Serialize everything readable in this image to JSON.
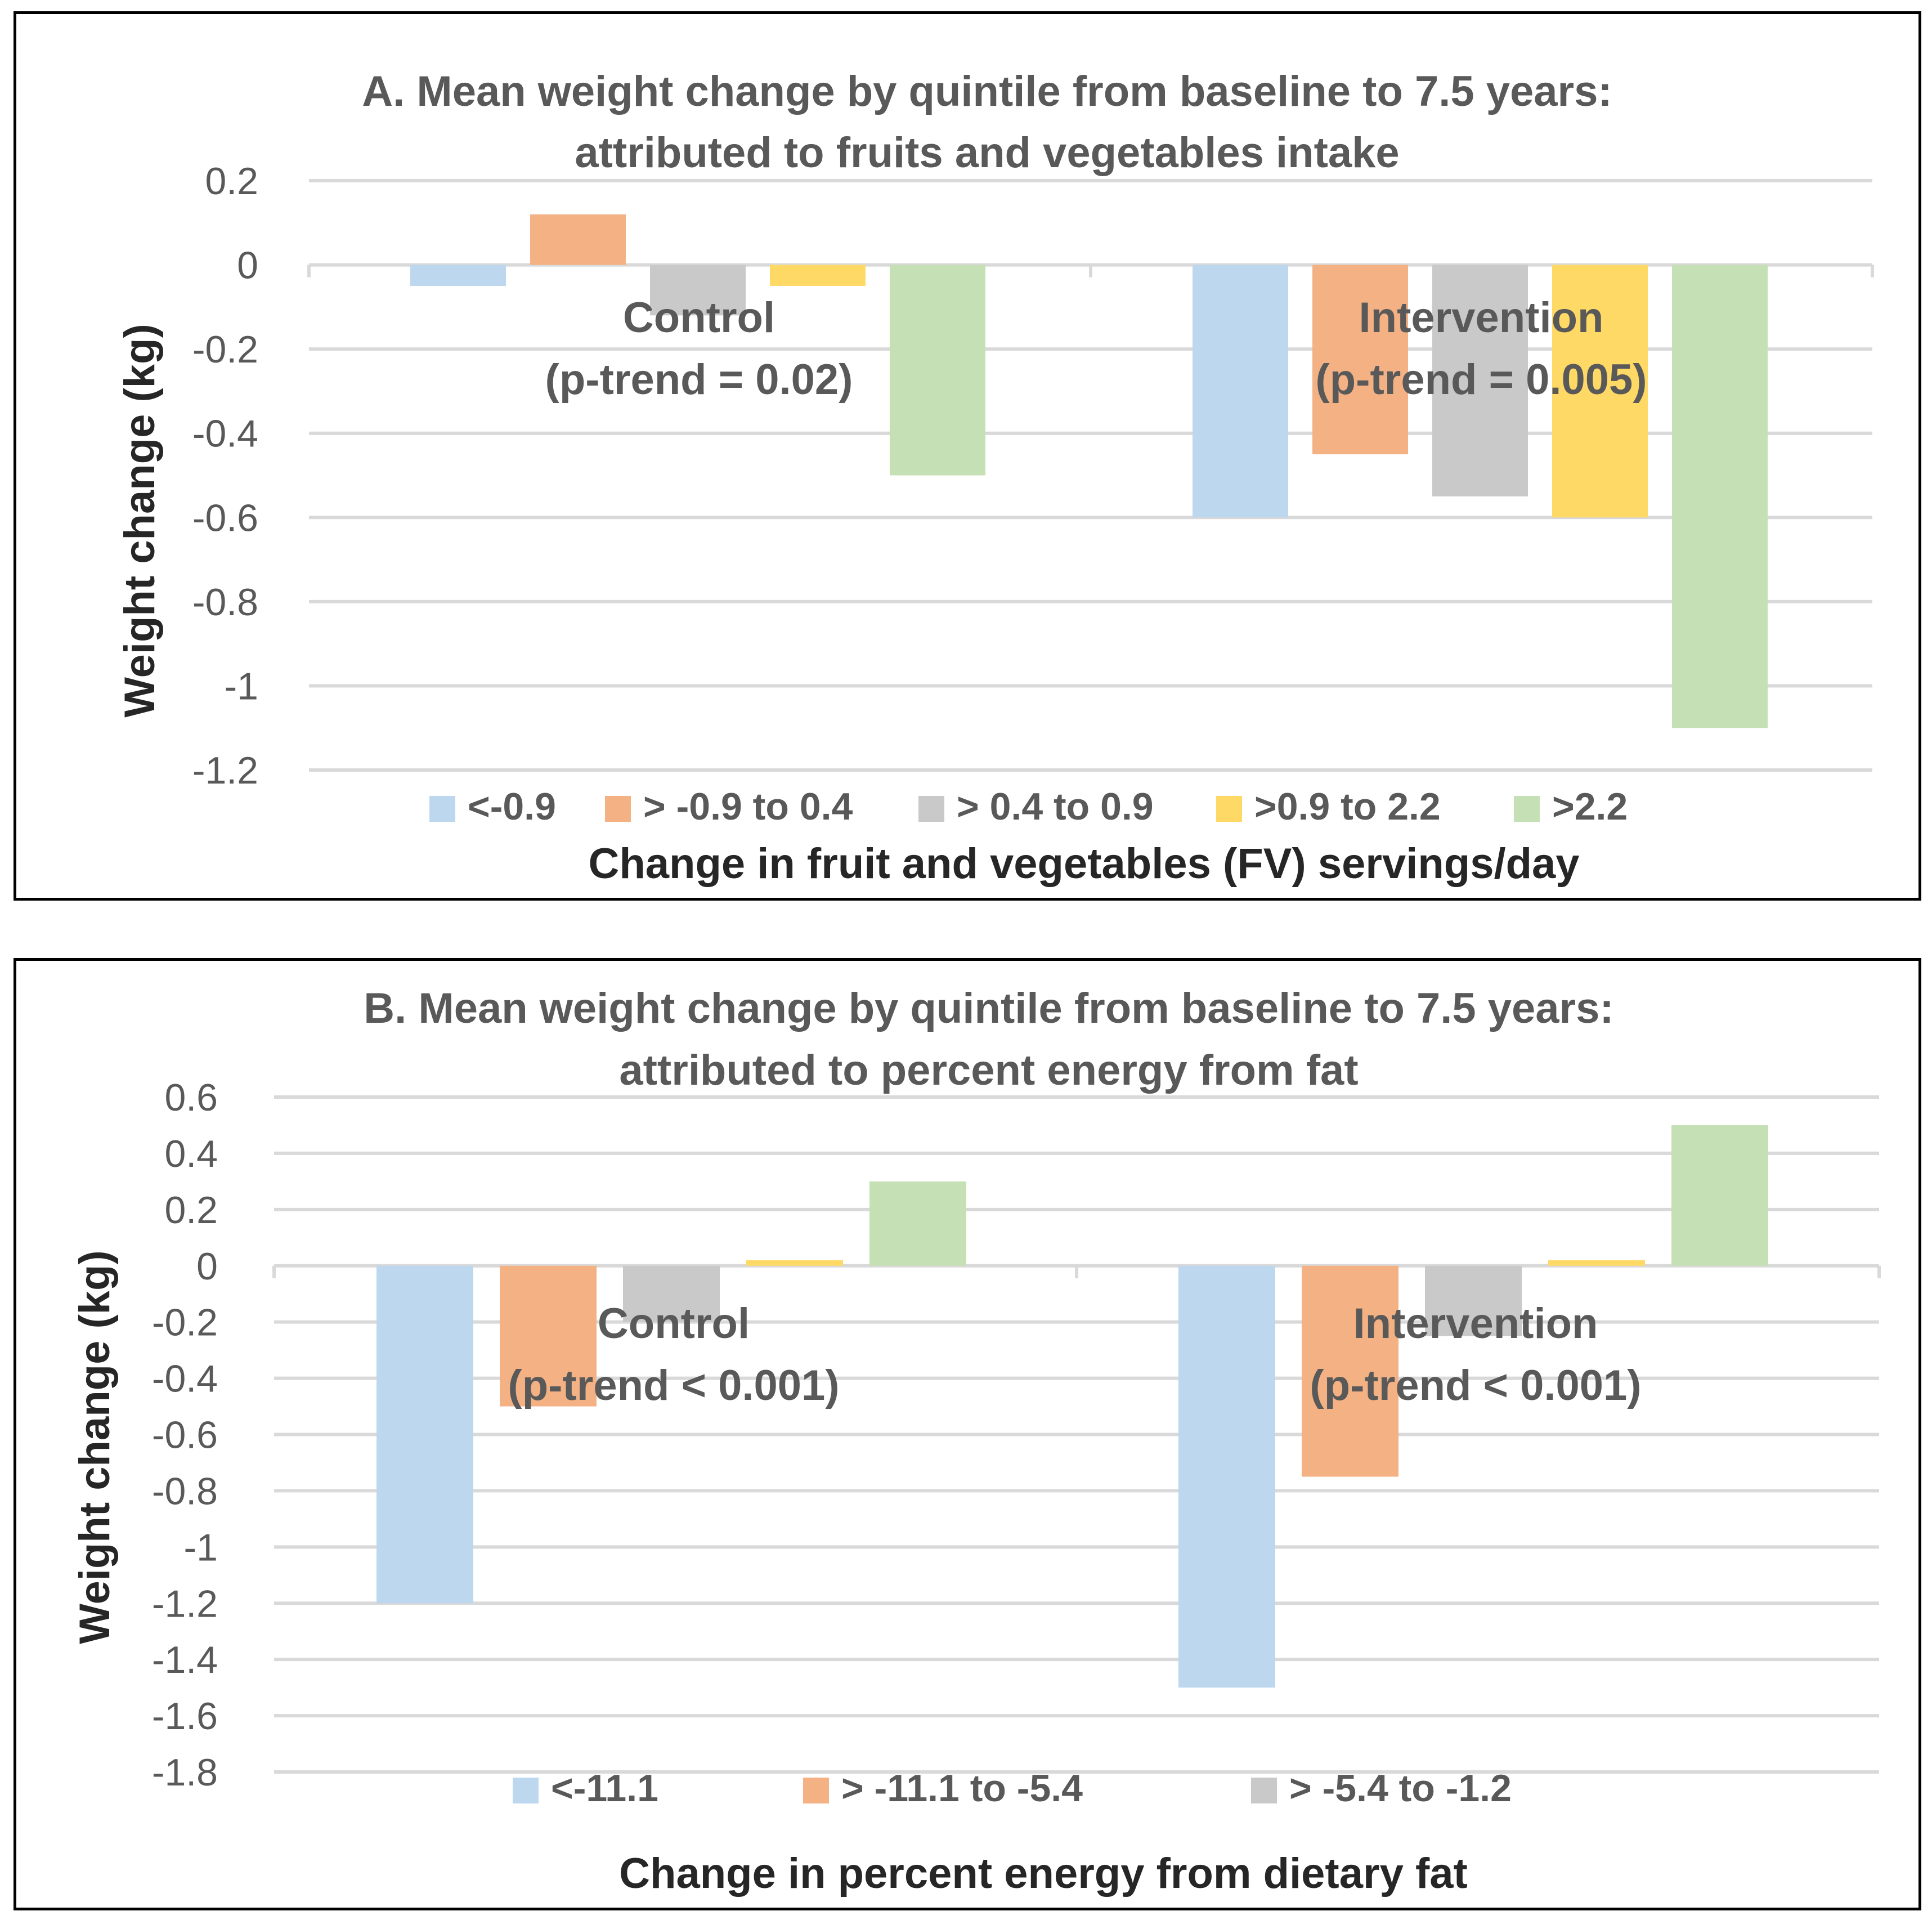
{
  "chart_data": [
    {
      "type": "bar",
      "title_lines": [
        "A. Mean weight change by quintile from baseline to 7.5 years:",
        "attributed to fruits and vegetables intake"
      ],
      "xlabel": "Change in fruit and vegetables (FV) servings/day",
      "ylabel": "Weight change (kg)",
      "ylim": [
        -1.2,
        0.2
      ],
      "yticks": [
        0.2,
        0,
        -0.2,
        -0.4,
        -0.6,
        -0.8,
        -1,
        -1.2
      ],
      "ytick_labels": [
        "0.2",
        "0",
        "-0.2",
        "-0.4",
        "-0.6",
        "-0.8",
        "-1",
        "-1.2"
      ],
      "grid": true,
      "legend_position": "bottom",
      "groups": [
        {
          "name": "Control",
          "annotation_lines": [
            "Control",
            "(p-trend = 0.02)"
          ]
        },
        {
          "name": "Intervention",
          "annotation_lines": [
            "Intervention",
            "(p-trend = 0.005)"
          ]
        }
      ],
      "series": [
        {
          "name": "<-0.9",
          "color": "#bdd7ee",
          "values": [
            -0.05,
            -0.6
          ]
        },
        {
          "name": "> -0.9 to 0.4",
          "color": "#f4b183",
          "values": [
            0.12,
            -0.45
          ]
        },
        {
          "name": "> 0.4 to 0.9",
          "color": "#c9c9c9",
          "values": [
            -0.12,
            -0.55
          ]
        },
        {
          "name": ">0.9 to 2.2",
          "color": "#ffd966",
          "values": [
            -0.05,
            -0.6
          ]
        },
        {
          "name": ">2.2",
          "color": "#c5e0b4",
          "values": [
            -0.5,
            -1.1
          ]
        }
      ]
    },
    {
      "type": "bar",
      "title_lines": [
        "B. Mean weight change by quintile from baseline to 7.5 years:",
        "attributed to percent energy from fat"
      ],
      "xlabel": "Change in percent energy from dietary fat",
      "ylabel": "Weight change (kg)",
      "ylim": [
        -1.8,
        0.6
      ],
      "yticks": [
        0.6,
        0.4,
        0.2,
        0,
        -0.2,
        -0.4,
        -0.6,
        -0.8,
        -1,
        -1.2,
        -1.4,
        -1.6,
        -1.8
      ],
      "ytick_labels": [
        "0.6",
        "0.4",
        "0.2",
        "0",
        "-0.2",
        "-0.4",
        "-0.6",
        "-0.8",
        "-1",
        "-1.2",
        "-1.4",
        "-1.6",
        "-1.8"
      ],
      "grid": true,
      "legend_position": "bottom",
      "groups": [
        {
          "name": "Control",
          "annotation_lines": [
            "Control",
            "(p-trend < 0.001)"
          ]
        },
        {
          "name": "Intervention",
          "annotation_lines": [
            "Intervention",
            "(p-trend < 0.001)"
          ]
        }
      ],
      "series": [
        {
          "name": "<-11.1",
          "color": "#bdd7ee",
          "values": [
            -1.2,
            -1.5
          ],
          "in_legend": true
        },
        {
          "name": "> -11.1 to -5.4",
          "color": "#f4b183",
          "values": [
            -0.5,
            -0.75
          ],
          "in_legend": true
        },
        {
          "name": "> -5.4 to -1.2",
          "color": "#c9c9c9",
          "values": [
            -0.2,
            -0.25
          ],
          "in_legend": true
        },
        {
          "name": "series-4",
          "color": "#ffd966",
          "values": [
            0.02,
            0.02
          ],
          "in_legend": false
        },
        {
          "name": "series-5",
          "color": "#c5e0b4",
          "values": [
            0.3,
            0.5
          ],
          "in_legend": false
        }
      ]
    }
  ]
}
